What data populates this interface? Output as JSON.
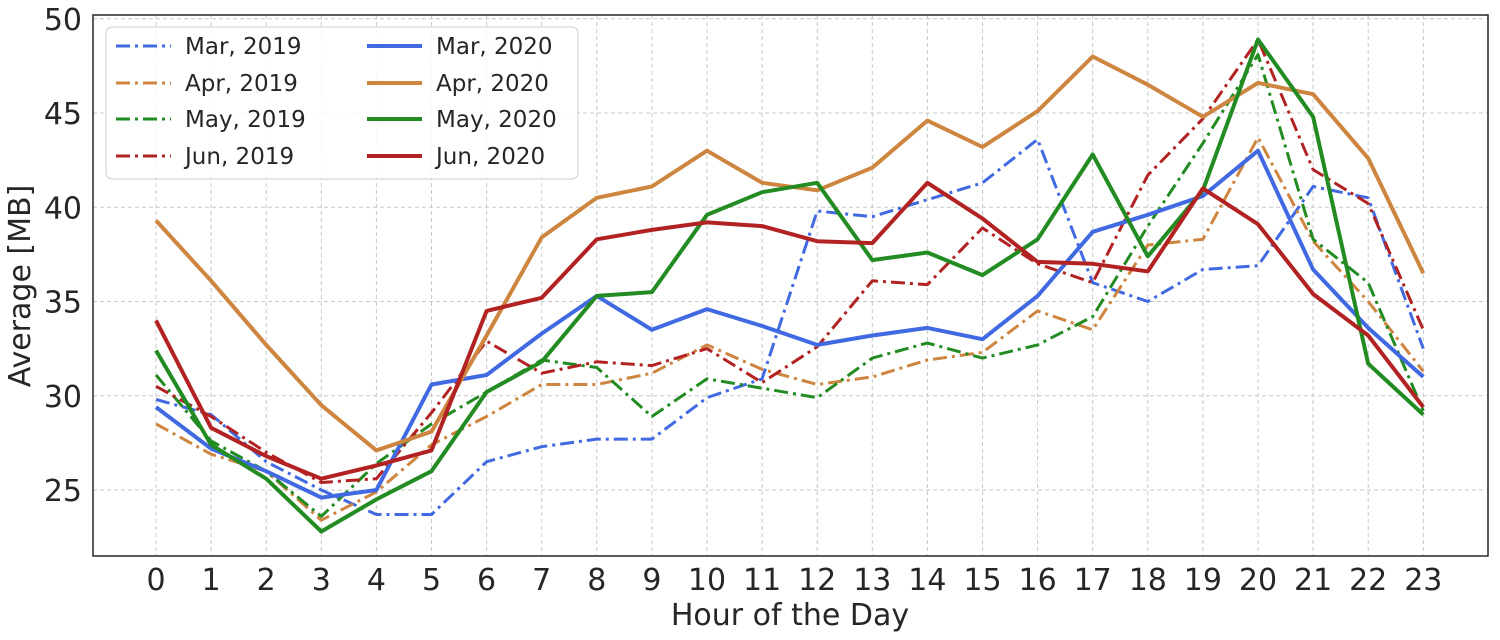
{
  "chart_data": {
    "type": "line",
    "title": "",
    "xlabel": "Hour of the Day",
    "ylabel": "Average [MB]",
    "x": [
      0,
      1,
      2,
      3,
      4,
      5,
      6,
      7,
      8,
      9,
      10,
      11,
      12,
      13,
      14,
      15,
      16,
      17,
      18,
      19,
      20,
      21,
      22,
      23
    ],
    "xticks": [
      "0",
      "1",
      "2",
      "3",
      "4",
      "5",
      "6",
      "7",
      "8",
      "9",
      "10",
      "11",
      "12",
      "13",
      "14",
      "15",
      "16",
      "17",
      "18",
      "19",
      "20",
      "21",
      "22",
      "23"
    ],
    "ylim": [
      21.5,
      50.2
    ],
    "yticks": [
      25,
      30,
      35,
      40,
      45,
      50
    ],
    "ytick_labels": [
      "25",
      "30",
      "35",
      "40",
      "45",
      "50"
    ],
    "grid": true,
    "legend_position": "top-left",
    "legend_columns": 2,
    "series": [
      {
        "name": "Mar, 2019",
        "color": "#4169e1",
        "style": "dashdot",
        "values": [
          29.8,
          29.0,
          26.5,
          25.0,
          23.7,
          23.7,
          26.5,
          27.3,
          27.7,
          27.7,
          29.9,
          30.9,
          39.8,
          39.5,
          40.4,
          41.3,
          43.6,
          36.0,
          35.0,
          36.7,
          36.9,
          41.1,
          40.5,
          32.5
        ]
      },
      {
        "name": "Apr, 2019",
        "color": "#cd853f",
        "style": "dashdot",
        "values": [
          28.5,
          26.9,
          26.0,
          23.4,
          24.9,
          27.4,
          28.9,
          30.6,
          30.6,
          31.2,
          32.7,
          31.4,
          30.6,
          31.0,
          31.9,
          32.3,
          34.5,
          33.5,
          38.0,
          38.3,
          43.7,
          38.2,
          35.0,
          31.3
        ]
      },
      {
        "name": "May, 2019",
        "color": "#228b22",
        "style": "dashdot",
        "values": [
          31.1,
          27.6,
          26.0,
          23.6,
          26.4,
          28.5,
          30.2,
          31.9,
          31.5,
          28.9,
          30.9,
          30.4,
          29.9,
          32.0,
          32.8,
          32.0,
          32.7,
          34.2,
          39.0,
          43.4,
          48.1,
          38.3,
          36.0,
          29.2
        ]
      },
      {
        "name": "Jun, 2019",
        "color": "#b22222",
        "style": "dashdot",
        "values": [
          30.5,
          28.9,
          27.0,
          25.4,
          25.6,
          29.1,
          32.9,
          31.2,
          31.8,
          31.6,
          32.5,
          30.7,
          32.6,
          36.1,
          35.9,
          38.9,
          37.0,
          36.0,
          41.7,
          44.7,
          48.9,
          42.0,
          40.2,
          33.5
        ]
      },
      {
        "name": "Mar, 2020",
        "color": "#4169e1",
        "style": "solid",
        "values": [
          29.4,
          27.2,
          26.0,
          24.6,
          25.0,
          30.6,
          31.1,
          33.3,
          35.3,
          33.5,
          34.6,
          33.7,
          32.7,
          33.2,
          33.6,
          33.0,
          35.3,
          38.7,
          39.6,
          40.6,
          43.0,
          36.7,
          33.6,
          31.0
        ]
      },
      {
        "name": "Apr, 2020",
        "color": "#cd853f",
        "style": "solid",
        "values": [
          39.3,
          36.1,
          32.7,
          29.5,
          27.1,
          28.1,
          33.2,
          38.4,
          40.5,
          41.1,
          43.0,
          41.3,
          40.9,
          42.1,
          44.6,
          43.2,
          45.1,
          48.0,
          46.5,
          44.8,
          46.6,
          46.0,
          42.6,
          36.5
        ]
      },
      {
        "name": "May, 2020",
        "color": "#228b22",
        "style": "solid",
        "values": [
          32.4,
          27.4,
          25.6,
          22.8,
          24.5,
          26.0,
          30.2,
          31.8,
          35.3,
          35.5,
          39.6,
          40.8,
          41.3,
          37.2,
          37.6,
          36.4,
          38.3,
          42.8,
          37.4,
          40.9,
          48.9,
          44.8,
          31.7,
          29.0
        ]
      },
      {
        "name": "Jun, 2020",
        "color": "#b22222",
        "style": "solid",
        "values": [
          34.0,
          28.3,
          26.8,
          25.6,
          26.3,
          27.1,
          34.5,
          35.2,
          38.3,
          38.8,
          39.2,
          39.0,
          38.2,
          38.1,
          41.3,
          39.4,
          37.1,
          37.0,
          36.6,
          41.0,
          39.1,
          35.4,
          33.2,
          29.4
        ]
      }
    ]
  }
}
